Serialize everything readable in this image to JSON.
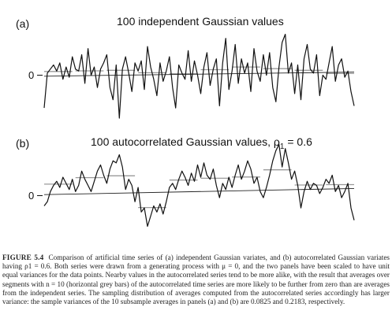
{
  "chart_data": [
    {
      "type": "line",
      "panel_label": "(a)",
      "title": "100 independent Gaussian values",
      "ytick_label": "0",
      "ylim": [
        -2.8,
        2.8
      ],
      "x": [
        1,
        2,
        3,
        4,
        5,
        6,
        7,
        8,
        9,
        10,
        11,
        12,
        13,
        14,
        15,
        16,
        17,
        18,
        19,
        20,
        21,
        22,
        23,
        24,
        25,
        26,
        27,
        28,
        29,
        30,
        31,
        32,
        33,
        34,
        35,
        36,
        37,
        38,
        39,
        40,
        41,
        42,
        43,
        44,
        45,
        46,
        47,
        48,
        49,
        50,
        51,
        52,
        53,
        54,
        55,
        56,
        57,
        58,
        59,
        60,
        61,
        62,
        63,
        64,
        65,
        66,
        67,
        68,
        69,
        70,
        71,
        72,
        73,
        74,
        75,
        76,
        77,
        78,
        79,
        80,
        81,
        82,
        83,
        84,
        85,
        86,
        87,
        88,
        89,
        90,
        91,
        92,
        93,
        94,
        95,
        96,
        97,
        98,
        99,
        100
      ],
      "series": [
        {
          "values": [
            -1.6,
            0.1,
            0.3,
            0.5,
            0.2,
            0.6,
            -0.2,
            0.4,
            -0.1,
            0.9,
            0.3,
            0.2,
            1.0,
            -0.4,
            1.3,
            0.0,
            0.4,
            -0.6,
            0.3,
            0.6,
            1.0,
            -0.6,
            -1.2,
            0.5,
            -2.1,
            0.3,
            0.9,
            0.1,
            -0.8,
            0.6,
            0.2,
            0.7,
            -0.7,
            1.4,
            0.4,
            -0.2,
            -1.0,
            0.6,
            -0.3,
            0.2,
            0.9,
            -0.6,
            -1.6,
            0.5,
            0.1,
            -0.2,
            1.2,
            -0.3,
            0.7,
            0.0,
            -0.9,
            0.4,
            1.1,
            -0.5,
            0.3,
            0.8,
            -1.5,
            0.6,
            1.8,
            -0.7,
            0.2,
            1.5,
            -0.4,
            0.8,
            0.1,
            0.6,
            -0.8,
            1.3,
            0.2,
            -0.3,
            1.0,
            0.0,
            1.1,
            -0.6,
            -1.3,
            0.4,
            1.6,
            2.0,
            0.1,
            0.6,
            -0.9,
            0.5,
            -1.2,
            0.8,
            1.5,
            0.3,
            0.1,
            1.0,
            -1.0,
            0.0,
            -0.2,
            0.6,
            1.4,
            -0.3,
            0.5,
            0.8,
            -0.1,
            0.2,
            -0.8,
            -1.5
          ]
        }
      ],
      "trend": [
        -0.05,
        0.15
      ],
      "segment_means": [
        0.18,
        0.21,
        0.24,
        0.12,
        0.07,
        0.27,
        0.4,
        0.32,
        0.24,
        0.08
      ]
    },
    {
      "type": "line",
      "panel_label": "(b)",
      "title": "100 autocorrelated Gaussian values, ρ",
      "title_subscript": "1",
      "title_suffix": " = 0.6",
      "ytick_label": "0",
      "ylim": [
        -2.8,
        2.8
      ],
      "x": [
        1,
        2,
        3,
        4,
        5,
        6,
        7,
        8,
        9,
        10,
        11,
        12,
        13,
        14,
        15,
        16,
        17,
        18,
        19,
        20,
        21,
        22,
        23,
        24,
        25,
        26,
        27,
        28,
        29,
        30,
        31,
        32,
        33,
        34,
        35,
        36,
        37,
        38,
        39,
        40,
        41,
        42,
        43,
        44,
        45,
        46,
        47,
        48,
        49,
        50,
        51,
        52,
        53,
        54,
        55,
        56,
        57,
        58,
        59,
        60,
        61,
        62,
        63,
        64,
        65,
        66,
        67,
        68,
        69,
        70,
        71,
        72,
        73,
        74,
        75,
        76,
        77,
        78,
        79,
        80,
        81,
        82,
        83,
        84,
        85,
        86,
        87,
        88,
        89,
        90,
        91,
        92,
        93,
        94,
        95,
        96,
        97,
        98,
        99,
        100
      ],
      "series": [
        {
          "values": [
            -0.5,
            -0.3,
            0.2,
            0.5,
            0.7,
            0.4,
            0.9,
            0.6,
            0.3,
            0.8,
            0.2,
            0.5,
            1.2,
            0.8,
            0.5,
            0.2,
            0.7,
            1.2,
            1.5,
            1.0,
            0.6,
            1.3,
            1.7,
            1.6,
            2.0,
            1.4,
            0.3,
            0.8,
            0.5,
            -0.3,
            0.4,
            -0.8,
            -0.6,
            -1.5,
            -1.0,
            -0.5,
            -0.8,
            -0.4,
            -0.9,
            -0.3,
            0.4,
            0.6,
            0.3,
            0.8,
            1.2,
            0.9,
            0.5,
            1.1,
            0.7,
            1.5,
            0.9,
            1.6,
            1.0,
            0.8,
            1.3,
            0.5,
            -0.1,
            0.6,
            0.3,
            0.9,
            0.4,
            1.0,
            1.5,
            0.8,
            1.2,
            1.7,
            1.3,
            0.6,
            0.9,
            0.2,
            -0.1,
            0.4,
            1.0,
            1.7,
            2.2,
            2.5,
            1.4,
            2.3,
            1.6,
            0.8,
            1.2,
            0.5,
            -0.6,
            0.2,
            0.7,
            0.3,
            0.6,
            0.5,
            0.1,
            0.4,
            0.8,
            0.6,
            1.0,
            0.2,
            0.5,
            -0.1,
            0.2,
            0.6,
            -0.6,
            -1.2
          ]
        }
      ],
      "trend": [
        0.05,
        0.35
      ],
      "segment_means": [
        0.56,
        0.88,
        0.97,
        -0.58,
        0.76,
        0.85,
        0.91,
        1.26,
        0.52,
        0.54
      ]
    }
  ],
  "caption": {
    "lead": "FIGURE 5.4",
    "text": "Comparison of artificial time series of (a) independent Gaussian variates, and (b) autocorrelated Gaussian variates having ρ1 = 0.6. Both series were drawn from a generating process with μ = 0, and the two panels have been scaled to have unit equal variances for the data points. Nearby values in the autocorrelated series tend to be more alike, with the result that averages over segments with n = 10 (horizontal grey bars) of the autocorrelated time series are more likely to be further from zero than are averages from the independent series. The sampling distribution of averages computed from the autocorrelated series accordingly has larger variance: the sample variances of the 10 subsample averages in panels (a) and (b) are 0.0825 and 0.2183, respectively."
  }
}
